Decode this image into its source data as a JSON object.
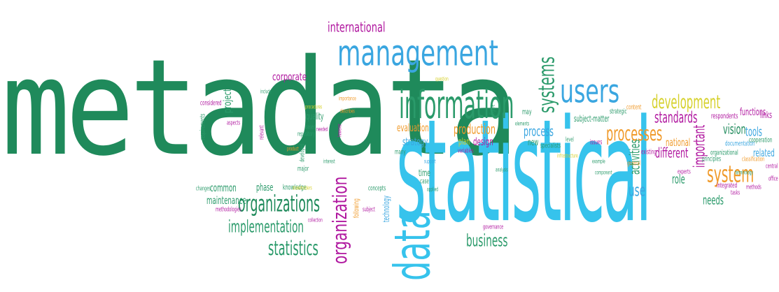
{
  "words": [
    {
      "text": "metadata",
      "color": "#1f8a5b"
    },
    {
      "text": "statistical",
      "color": "#36c3ec"
    },
    {
      "text": "management",
      "color": "#3aa6e0"
    },
    {
      "text": "information",
      "color": "#2a9a6a"
    },
    {
      "text": "data",
      "color": "#36c3ec"
    },
    {
      "text": "international",
      "color": "#b0179f"
    },
    {
      "text": "users",
      "color": "#3aa6e0"
    },
    {
      "text": "systems",
      "color": "#2a9a6a"
    },
    {
      "text": "organizations",
      "color": "#1f8a5b"
    },
    {
      "text": "organization",
      "color": "#b0179f"
    },
    {
      "text": "implementation",
      "color": "#2a9a6a"
    },
    {
      "text": "statistics",
      "color": "#2a9a6a"
    },
    {
      "text": "business",
      "color": "#2a9a6a"
    },
    {
      "text": "corporate",
      "color": "#b0179f"
    },
    {
      "text": "project",
      "color": "#2a9a6a"
    },
    {
      "text": "development",
      "color": "#d6d12c"
    },
    {
      "text": "standards",
      "color": "#b0179f"
    },
    {
      "text": "processes",
      "color": "#f09a2a"
    },
    {
      "text": "process",
      "color": "#3aa6e0"
    },
    {
      "text": "production",
      "color": "#f09a2a"
    },
    {
      "text": "system",
      "color": "#f09a2a"
    },
    {
      "text": "important",
      "color": "#b0179f"
    },
    {
      "text": "vision",
      "color": "#1f8a5b"
    },
    {
      "text": "tools",
      "color": "#3aa6e0"
    },
    {
      "text": "different",
      "color": "#b0179f"
    },
    {
      "text": "activities",
      "color": "#2a9a6a"
    },
    {
      "text": "use",
      "color": "#3aa6e0"
    },
    {
      "text": "role",
      "color": "#2a9a6a"
    },
    {
      "text": "needs",
      "color": "#2a9a6a"
    },
    {
      "text": "national",
      "color": "#f09a2a"
    },
    {
      "text": "related",
      "color": "#3aa6e0"
    },
    {
      "text": "evaluation",
      "color": "#f09a2a"
    },
    {
      "text": "strategy",
      "color": "#3aa6e0"
    },
    {
      "text": "design",
      "color": "#b0179f"
    },
    {
      "text": "plan",
      "color": "#d6d12c"
    },
    {
      "text": "new",
      "color": "#2a9a6a"
    },
    {
      "text": "time",
      "color": "#2a9a6a"
    },
    {
      "text": "quality",
      "color": "#2a9a6a"
    },
    {
      "text": "common",
      "color": "#2a9a6a"
    },
    {
      "text": "phase",
      "color": "#2a9a6a"
    },
    {
      "text": "maintenance",
      "color": "#2a9a6a"
    },
    {
      "text": "knowledge",
      "color": "#2a9a6a"
    },
    {
      "text": "following",
      "color": "#f09a2a"
    },
    {
      "text": "technology",
      "color": "#3aa6e0"
    },
    {
      "text": "concepts",
      "color": "#2a9a6a"
    },
    {
      "text": "specialists",
      "color": "#2a9a6a"
    },
    {
      "text": "subject-matter",
      "color": "#2a9a6a"
    },
    {
      "text": "functions",
      "color": "#b0179f"
    },
    {
      "text": "links",
      "color": "#b0179f"
    },
    {
      "text": "respondents",
      "color": "#b0179f"
    },
    {
      "text": "documentation",
      "color": "#3aa6e0"
    },
    {
      "text": "cooperation",
      "color": "#2a9a6a"
    },
    {
      "text": "organizational",
      "color": "#2a9a6a"
    },
    {
      "text": "principles",
      "color": "#2a9a6a"
    },
    {
      "text": "integrated",
      "color": "#b0179f"
    },
    {
      "text": "governance",
      "color": "#b0179f"
    },
    {
      "text": "case",
      "color": "#2a9a6a"
    },
    {
      "text": "many",
      "color": "#2a9a6a"
    },
    {
      "text": "may",
      "color": "#2a9a6a"
    },
    {
      "text": "content",
      "color": "#f09a2a"
    },
    {
      "text": "strategic",
      "color": "#2a9a6a"
    },
    {
      "text": "issues",
      "color": "#b0179f"
    },
    {
      "text": "existing",
      "color": "#b0179f"
    },
    {
      "text": "aspects",
      "color": "#b0179f"
    },
    {
      "text": "considered",
      "color": "#b0179f"
    },
    {
      "text": "requirements",
      "color": "#2a9a6a"
    },
    {
      "text": "developed",
      "color": "#2a9a6a"
    },
    {
      "text": "major",
      "color": "#2a9a6a"
    },
    {
      "text": "repository",
      "color": "#2a9a6a"
    },
    {
      "text": "based",
      "color": "#2a9a6a"
    },
    {
      "text": "changes",
      "color": "#2a9a6a"
    },
    {
      "text": "methodologies",
      "color": "#b0179f"
    },
    {
      "text": "relevant",
      "color": "#b0179f"
    },
    {
      "text": "subject",
      "color": "#b0179f"
    },
    {
      "text": "office",
      "color": "#b0179f"
    },
    {
      "text": "central",
      "color": "#b0179f"
    },
    {
      "text": "experts",
      "color": "#b0179f"
    },
    {
      "text": "methods",
      "color": "#b0179f"
    },
    {
      "text": "general",
      "color": "#f09a2a"
    },
    {
      "text": "tasks",
      "color": "#b0179f"
    },
    {
      "text": "level",
      "color": "#2a9a6a"
    },
    {
      "text": "figure",
      "color": "#2a9a6a"
    },
    {
      "text": "classification",
      "color": "#f09a2a"
    },
    {
      "text": "variables",
      "color": "#b0179f"
    },
    {
      "text": "elements",
      "color": "#2a9a6a"
    },
    {
      "text": "procedures",
      "color": "#d6d12c"
    },
    {
      "text": "importance",
      "color": "#f09a2a"
    },
    {
      "text": "however",
      "color": "#b0179f"
    },
    {
      "text": "needed",
      "color": "#b0179f"
    },
    {
      "text": "describes",
      "color": "#f09a2a"
    },
    {
      "text": "question",
      "color": "#d6d12c"
    },
    {
      "text": "include",
      "color": "#2a9a6a"
    },
    {
      "text": "product",
      "color": "#f09a2a"
    },
    {
      "text": "interest",
      "color": "#2a9a6a"
    },
    {
      "text": "stakeholders",
      "color": "#d6d12c"
    },
    {
      "text": "collection",
      "color": "#b0179f"
    },
    {
      "text": "applied",
      "color": "#2a9a6a"
    },
    {
      "text": "analysis",
      "color": "#2a9a6a"
    },
    {
      "text": "example",
      "color": "#2a9a6a"
    },
    {
      "text": "component",
      "color": "#2a9a6a"
    },
    {
      "text": "support",
      "color": "#3aa6e0"
    },
    {
      "text": "terminology",
      "color": "#2a9a6a"
    },
    {
      "text": "infrastructure",
      "color": "#d6d12c"
    }
  ]
}
